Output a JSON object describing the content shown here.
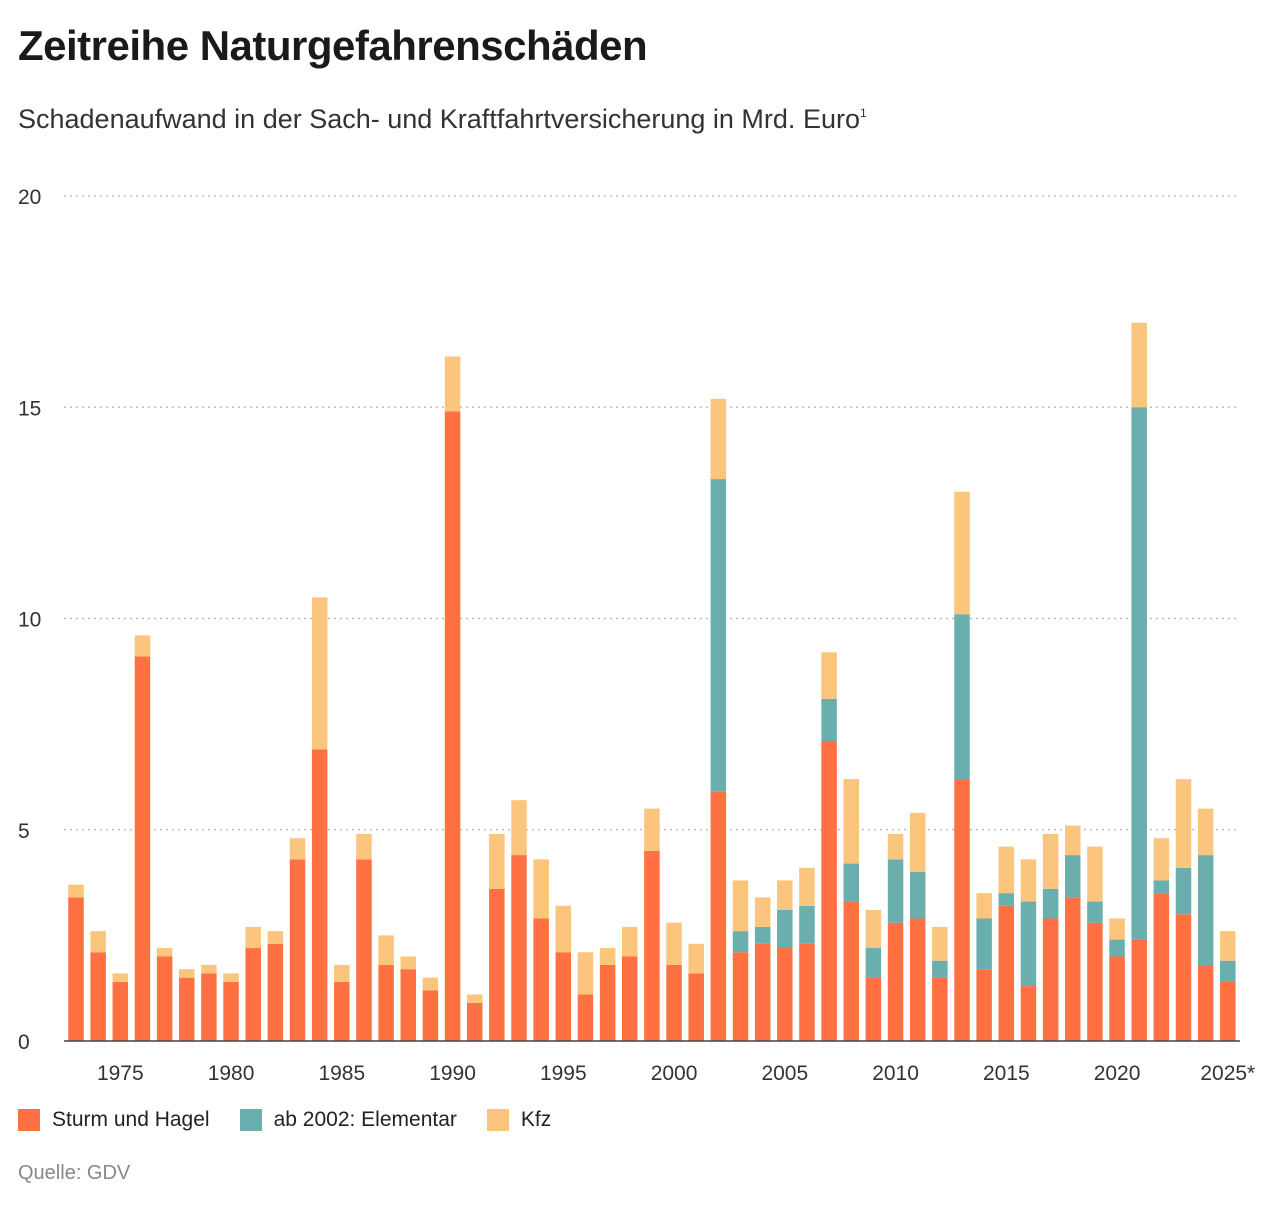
{
  "title": "Zeitreihe Naturgefahrenschäden",
  "subtitle": "Schadenaufwand in der Sach- und Kraftfahrtversicherung in Mrd. Euro",
  "subtitle_footnote": "1",
  "source": "Quelle: GDV",
  "colors": {
    "sturm": "#ff7043",
    "elementar": "#6aaeae",
    "kfz": "#fcc57e",
    "grid": "#b3b3b3",
    "axis": "#444444"
  },
  "chart_data": {
    "type": "bar",
    "stacked": true,
    "categories": [
      "1973",
      "1974",
      "1975",
      "1976",
      "1977",
      "1978",
      "1979",
      "1980",
      "1981",
      "1982",
      "1983",
      "1984",
      "1985",
      "1986",
      "1987",
      "1988",
      "1989",
      "1990",
      "1991",
      "1992",
      "1993",
      "1994",
      "1995",
      "1996",
      "1997",
      "1998",
      "1999",
      "2000",
      "2001",
      "2002",
      "2003",
      "2004",
      "2005",
      "2006",
      "2007",
      "2008",
      "2009",
      "2010",
      "2011",
      "2012",
      "2013",
      "2014",
      "2015",
      "2016",
      "2017",
      "2018",
      "2019",
      "2020",
      "2021",
      "2022",
      "2023",
      "2024",
      "2025*"
    ],
    "x_tick_labels": [
      "1975",
      "1980",
      "1985",
      "1990",
      "1995",
      "2000",
      "2005",
      "2010",
      "2015",
      "2020",
      "2025*"
    ],
    "y_ticks": [
      0,
      5,
      10,
      15,
      20
    ],
    "ylim": [
      0,
      20
    ],
    "grid": true,
    "legend_position": "bottom",
    "series": [
      {
        "name": "Sturm und Hagel",
        "color": "#ff7043",
        "values": [
          3.4,
          2.1,
          1.4,
          9.1,
          2.0,
          1.5,
          1.6,
          1.4,
          2.2,
          2.3,
          4.3,
          6.9,
          1.4,
          4.3,
          1.8,
          1.7,
          1.2,
          14.9,
          0.9,
          3.6,
          4.4,
          2.9,
          2.1,
          1.1,
          1.8,
          2.0,
          4.5,
          1.8,
          1.6,
          5.9,
          2.1,
          2.3,
          2.2,
          2.3,
          7.1,
          3.3,
          1.5,
          2.8,
          2.9,
          1.5,
          6.2,
          1.7,
          3.2,
          1.3,
          2.9,
          3.4,
          2.8,
          2.0,
          2.4,
          3.5,
          3.0,
          1.8,
          1.4
        ]
      },
      {
        "name": "ab 2002: Elementar",
        "color": "#6aaeae",
        "values": [
          0,
          0,
          0,
          0,
          0,
          0,
          0,
          0,
          0,
          0,
          0,
          0,
          0,
          0,
          0,
          0,
          0,
          0,
          0,
          0,
          0,
          0,
          0,
          0,
          0,
          0,
          0,
          0,
          0,
          7.4,
          0.5,
          0.4,
          0.9,
          0.9,
          1.0,
          0.9,
          0.7,
          1.5,
          1.1,
          0.4,
          3.9,
          1.2,
          0.3,
          2.0,
          0.7,
          1.0,
          0.5,
          0.4,
          12.6,
          0.3,
          1.1,
          2.6,
          0.5
        ]
      },
      {
        "name": "Kfz",
        "color": "#fcc57e",
        "values": [
          0.3,
          0.5,
          0.2,
          0.5,
          0.2,
          0.2,
          0.2,
          0.2,
          0.5,
          0.3,
          0.5,
          3.6,
          0.4,
          0.6,
          0.7,
          0.3,
          0.3,
          1.3,
          0.2,
          1.3,
          1.3,
          1.4,
          1.1,
          1.0,
          0.4,
          0.7,
          1.0,
          1.0,
          0.7,
          1.9,
          1.2,
          0.7,
          0.7,
          0.9,
          1.1,
          2.0,
          0.9,
          0.6,
          1.4,
          0.8,
          2.9,
          0.6,
          1.1,
          1.0,
          1.3,
          0.7,
          1.3,
          0.5,
          2.0,
          1.0,
          2.1,
          1.1,
          0.7
        ]
      }
    ]
  }
}
